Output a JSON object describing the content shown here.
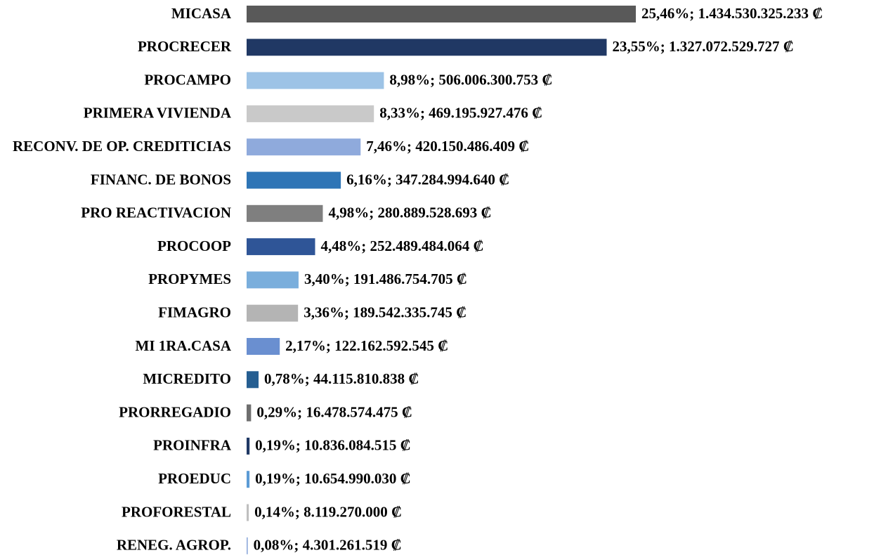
{
  "chart_data": {
    "type": "bar",
    "orientation": "horizontal",
    "categories": [
      "MICASA",
      "PROCRECER",
      "PROCAMPO",
      "PRIMERA VIVIENDA",
      "RECONV. DE OP. CREDITICIAS",
      "FINANC. DE BONOS",
      "PRO REACTIVACION",
      "PROCOOP",
      "PROPYMES",
      "FIMAGRO",
      "MI 1RA.CASA",
      "MICREDITO",
      "PRORREGADIO",
      "PROINFRA",
      "PROEDUC",
      "PROFORESTAL",
      "RENEG. AGROP."
    ],
    "values": [
      1434530325233,
      1327072529727,
      506006300753,
      469195927476,
      420150486409,
      347284994640,
      280889528693,
      252489484064,
      191486754705,
      189542335745,
      122162592545,
      44115810838,
      16478574475,
      10836084515,
      10654990030,
      8119270000,
      4301261519
    ],
    "value_labels": [
      "25,46%; 1.434.530.325.233 ₡",
      "23,55%; 1.327.072.529.727 ₡",
      "8,98%; 506.006.300.753 ₡",
      "8,33%; 469.195.927.476 ₡",
      "7,46%; 420.150.486.409 ₡",
      "6,16%; 347.284.994.640 ₡",
      "4,98%; 280.889.528.693 ₡",
      "4,48%; 252.489.484.064 ₡",
      "3,40%; 191.486.754.705 ₡",
      "3,36%; 189.542.335.745 ₡",
      "2,17%; 122.162.592.545 ₡",
      "0,78%; 44.115.810.838 ₡",
      "0,29%; 16.478.574.475 ₡",
      "0,19%; 10.836.084.515 ₡",
      "0,19%; 10.654.990.030 ₡",
      "0,14%; 8.119.270.000 ₡",
      "0,08%; 4.301.261.519 ₡"
    ],
    "colors": [
      "#595959",
      "#203864",
      "#9dc3e6",
      "#c9c9c9",
      "#8faadc",
      "#2e75b6",
      "#7f7f7f",
      "#2f5597",
      "#7aaedc",
      "#b4b4b4",
      "#6a8fd0",
      "#255e91",
      "#6e6e6e",
      "#1f3864",
      "#5b9bd5",
      "#bfbfbf",
      "#8faadc"
    ]
  }
}
